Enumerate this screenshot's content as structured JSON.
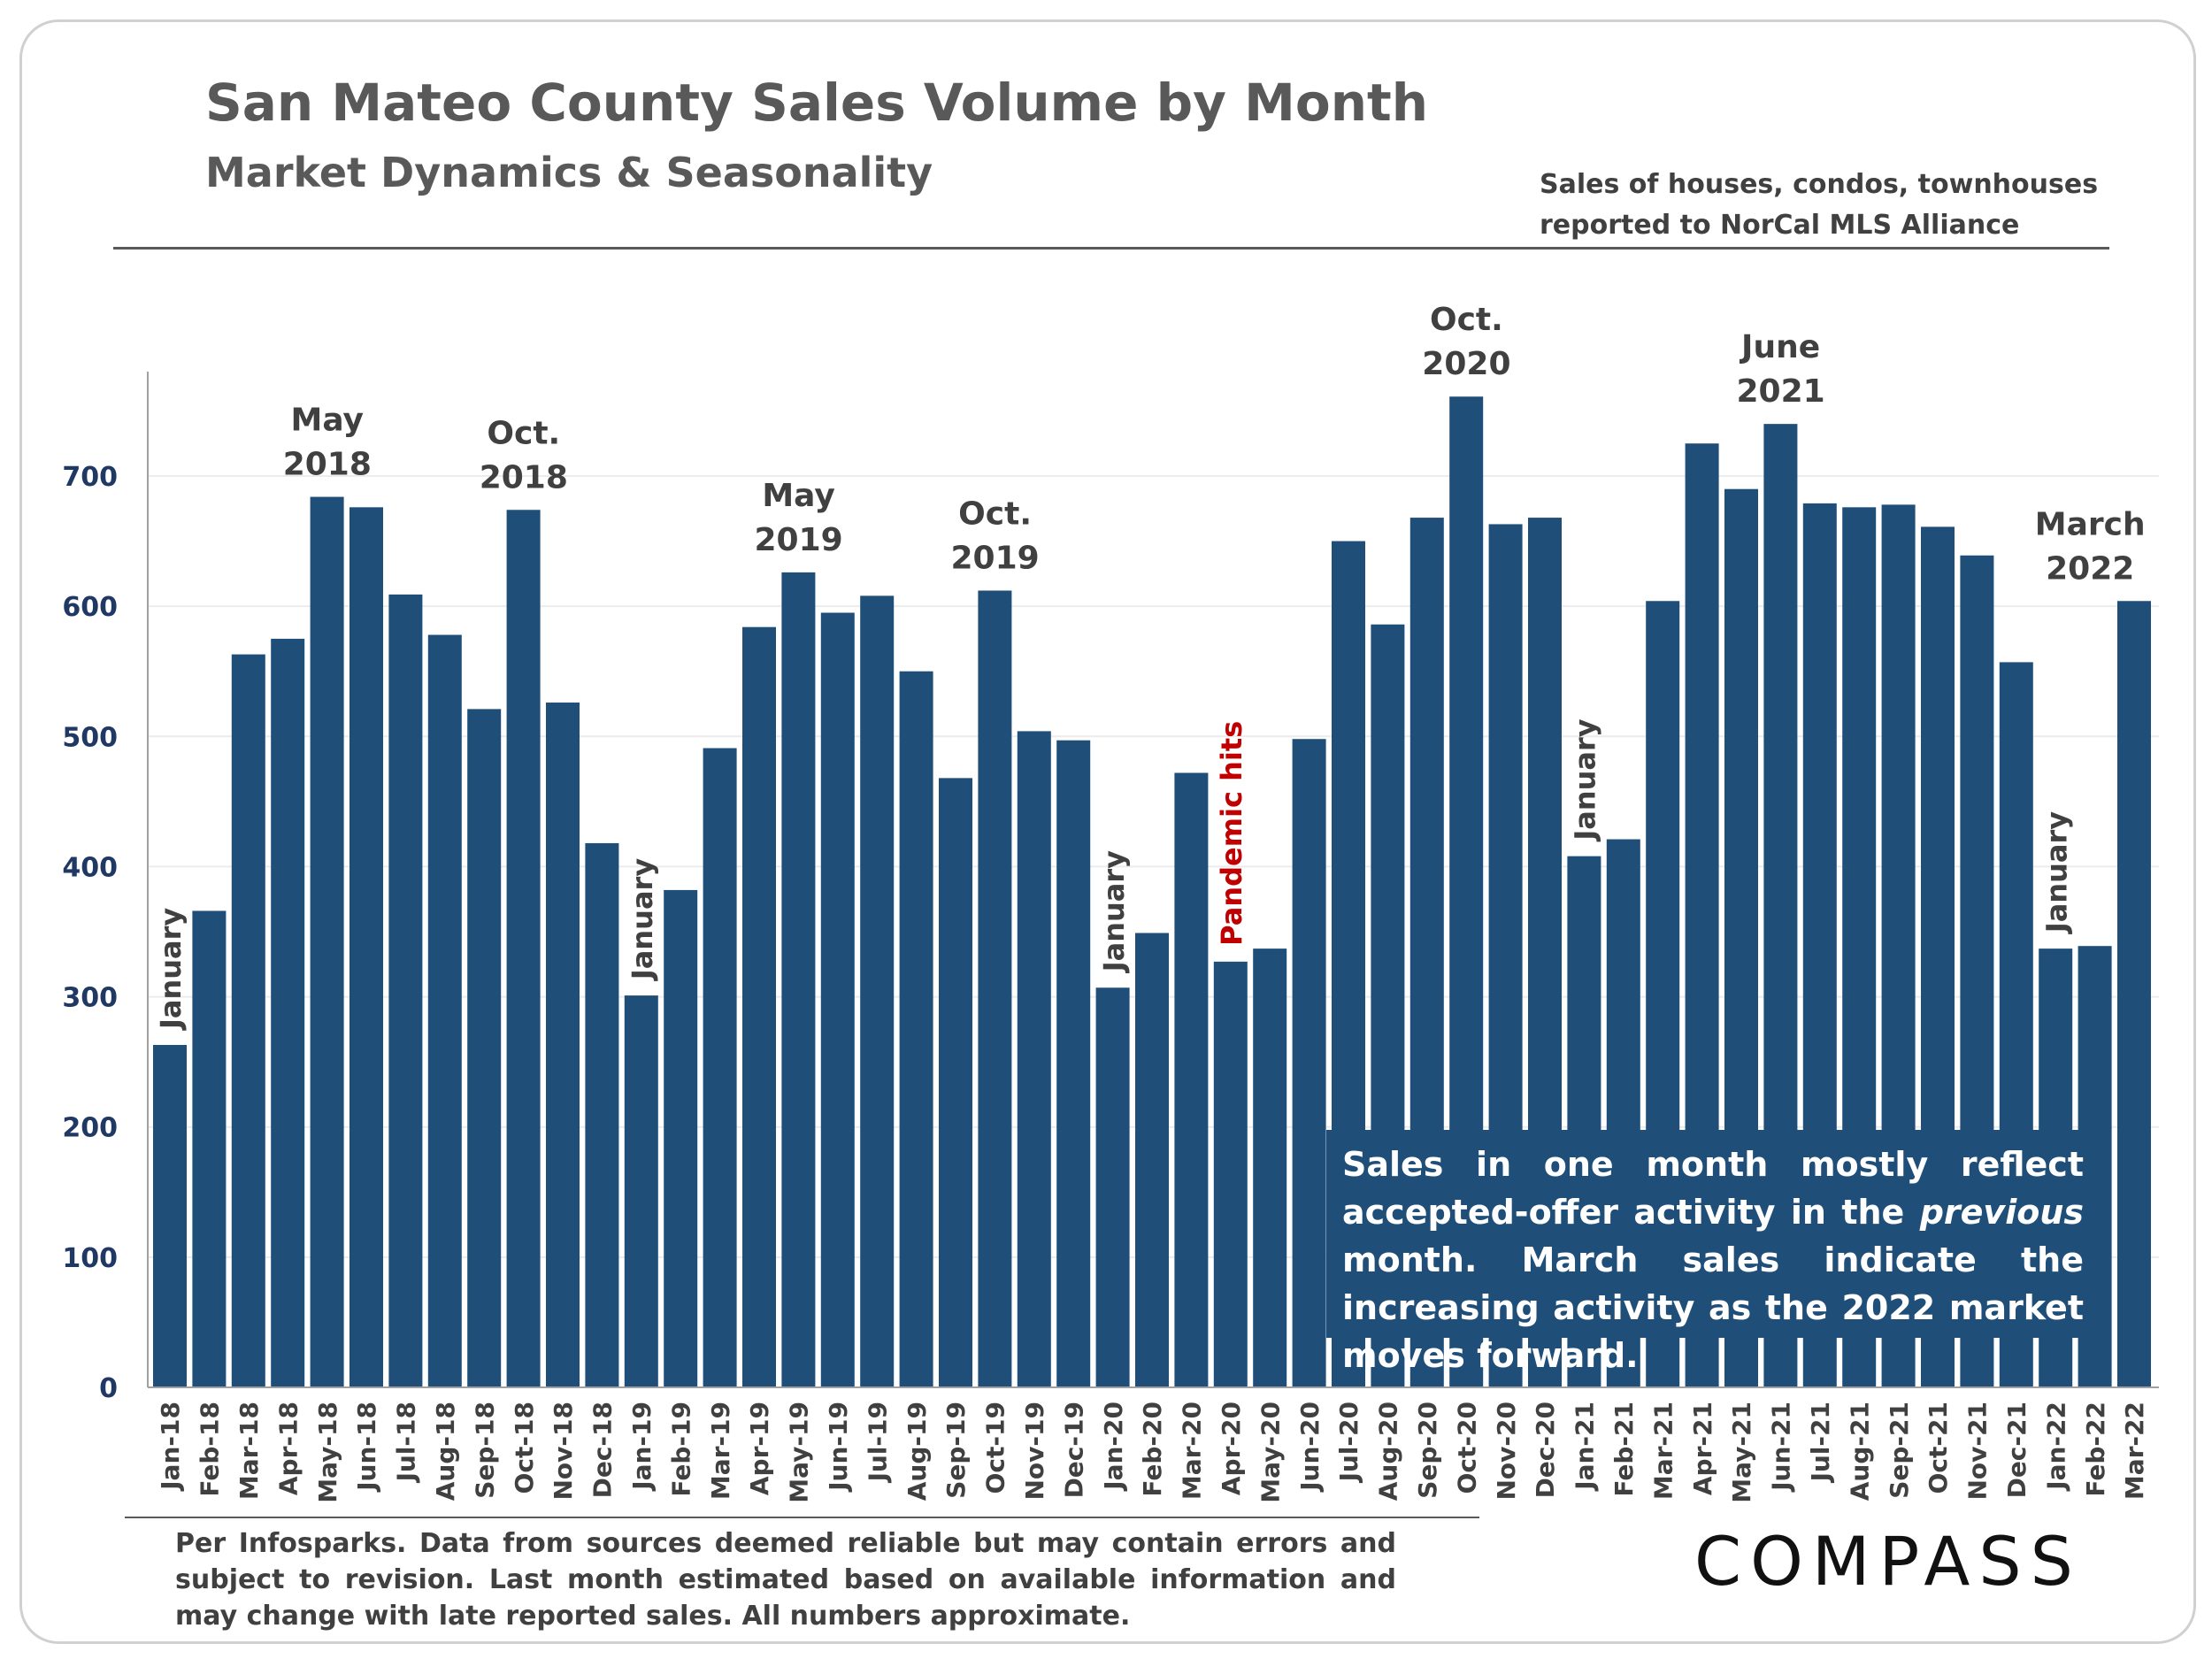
{
  "header": {
    "title": "San Mateo County Sales Volume by Month",
    "subtitle": "Market Dynamics & Seasonality",
    "note_lines": [
      "Sales of houses, condos, townhouses",
      "reported to NorCal MLS Alliance"
    ]
  },
  "callout": {
    "before": "Sales in one month mostly reflect accepted-offer activity in the ",
    "italic": "previous",
    "after": " month. March sales indicate the increasing activity as the 2022 market moves forward."
  },
  "footer": "Per Infosparks. Data from sources deemed reliable but may contain errors and subject to revision. Last month estimated based on available information and may change with late reported sales. All numbers approximate.",
  "logo": "COMPASS",
  "colors": {
    "bar": "#1f4e79",
    "axis_label": "#1f3864",
    "annotation": "#404040",
    "pandemic": "#c00000"
  },
  "chart_data": {
    "type": "bar",
    "title": "San Mateo County Sales Volume by Month",
    "ylim": [
      0,
      780
    ],
    "yticks": [
      0,
      100,
      200,
      300,
      400,
      500,
      600,
      700
    ],
    "grid": true,
    "categories": [
      "Jan-18",
      "Feb-18",
      "Mar-18",
      "Apr-18",
      "May-18",
      "Jun-18",
      "Jul-18",
      "Aug-18",
      "Sep-18",
      "Oct-18",
      "Nov-18",
      "Dec-18",
      "Jan-19",
      "Feb-19",
      "Mar-19",
      "Apr-19",
      "May-19",
      "Jun-19",
      "Jul-19",
      "Aug-19",
      "Sep-19",
      "Oct-19",
      "Nov-19",
      "Dec-19",
      "Jan-20",
      "Feb-20",
      "Mar-20",
      "Apr-20",
      "May-20",
      "Jun-20",
      "Jul-20",
      "Aug-20",
      "Sep-20",
      "Oct-20",
      "Nov-20",
      "Dec-20",
      "Jan-21",
      "Feb-21",
      "Mar-21",
      "Apr-21",
      "May-21",
      "Jun-21",
      "Jul-21",
      "Aug-21",
      "Sep-21",
      "Oct-21",
      "Nov-21",
      "Dec-21",
      "Jan-22",
      "Feb-22",
      "Mar-22"
    ],
    "values": [
      263,
      366,
      563,
      575,
      684,
      676,
      609,
      578,
      521,
      674,
      526,
      418,
      301,
      382,
      491,
      584,
      626,
      595,
      608,
      550,
      468,
      612,
      504,
      497,
      307,
      349,
      472,
      327,
      337,
      498,
      650,
      586,
      668,
      761,
      663,
      668,
      408,
      421,
      604,
      725,
      690,
      740,
      679,
      676,
      678,
      661,
      639,
      557,
      337,
      339,
      604
    ],
    "annotations": [
      {
        "category": "May-18",
        "lines": [
          "May",
          "2018"
        ]
      },
      {
        "category": "Oct-18",
        "lines": [
          "Oct.",
          "2018"
        ]
      },
      {
        "category": "May-19",
        "lines": [
          "May",
          "2019"
        ]
      },
      {
        "category": "Oct-19",
        "lines": [
          "Oct.",
          "2019"
        ]
      },
      {
        "category": "Oct-20",
        "lines": [
          "Oct.",
          "2020"
        ]
      },
      {
        "category": "Jun-21",
        "lines": [
          "June",
          "2021"
        ]
      },
      {
        "category": "Mar-22",
        "lines": [
          "March",
          "2022"
        ]
      }
    ],
    "vertical_annotations": [
      {
        "category": "Jan-18",
        "text": "January",
        "style": "normal"
      },
      {
        "category": "Jan-19",
        "text": "January",
        "style": "normal"
      },
      {
        "category": "Jan-20",
        "text": "January",
        "style": "normal"
      },
      {
        "category": "Apr-20",
        "text": "Pandemic hits",
        "style": "pandemic"
      },
      {
        "category": "Jan-21",
        "text": "January",
        "style": "normal"
      },
      {
        "category": "Jan-22",
        "text": "January",
        "style": "normal"
      }
    ]
  }
}
